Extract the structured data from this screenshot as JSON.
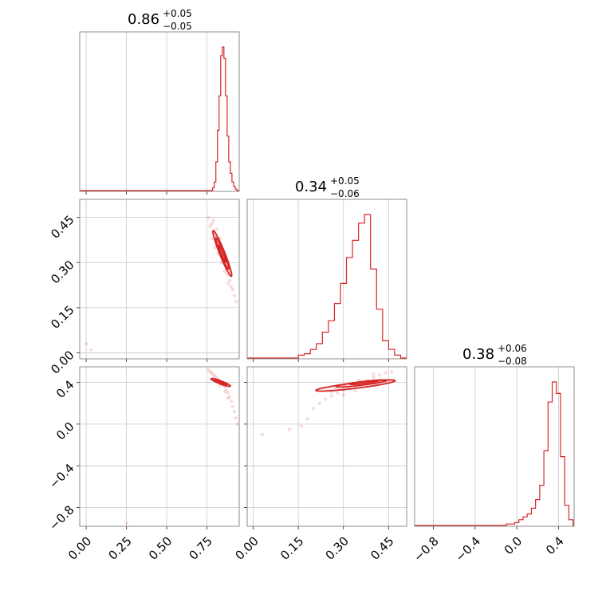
{
  "chart_data": {
    "type": "corner",
    "color": "#d62728",
    "params": [
      {
        "title": {
          "median": "0.86",
          "plus": "+0.05",
          "minus": "−0.05"
        },
        "range": [
          -0.04,
          0.95
        ],
        "ticks": [
          {
            "v": 0.0,
            "label": "0.00"
          },
          {
            "v": 0.25,
            "label": "0.25"
          },
          {
            "v": 0.5,
            "label": "0.50"
          },
          {
            "v": 0.75,
            "label": "0.75"
          }
        ]
      },
      {
        "title": {
          "median": "0.34",
          "plus": "+0.05",
          "minus": "−0.06"
        },
        "range": [
          -0.02,
          0.51
        ],
        "ticks": [
          {
            "v": 0.0,
            "label": "0.00"
          },
          {
            "v": 0.15,
            "label": "0.15"
          },
          {
            "v": 0.3,
            "label": "0.30"
          },
          {
            "v": 0.45,
            "label": "0.45"
          }
        ]
      },
      {
        "title": {
          "median": "0.38",
          "plus": "+0.06",
          "minus": "−0.08"
        },
        "range": [
          -0.98,
          0.55
        ],
        "ticks": [
          {
            "v": -0.8,
            "label": "−0.8"
          },
          {
            "v": -0.4,
            "label": "−0.4"
          },
          {
            "v": 0.0,
            "label": "0.0"
          },
          {
            "v": 0.4,
            "label": "0.4"
          }
        ]
      }
    ],
    "histograms": [
      {
        "bins": [
          0.79,
          0.8,
          0.81,
          0.82,
          0.83,
          0.84,
          0.85,
          0.86,
          0.87,
          0.88,
          0.89,
          0.9,
          0.91,
          0.92,
          0.93,
          0.94
        ],
        "values": [
          0.02,
          0.06,
          0.2,
          0.42,
          0.66,
          0.94,
          1.0,
          0.92,
          0.66,
          0.38,
          0.2,
          0.12,
          0.06,
          0.03,
          0.01,
          0.0
        ]
      },
      {
        "bins": [
          0.16,
          0.18,
          0.2,
          0.22,
          0.24,
          0.26,
          0.28,
          0.3,
          0.32,
          0.34,
          0.36,
          0.38,
          0.4,
          0.42,
          0.44,
          0.46,
          0.48
        ],
        "values": [
          0.02,
          0.03,
          0.06,
          0.1,
          0.18,
          0.26,
          0.38,
          0.52,
          0.7,
          0.82,
          0.94,
          1.0,
          0.62,
          0.34,
          0.12,
          0.06,
          0.02
        ]
      },
      {
        "bins": [
          -0.08,
          -0.04,
          0.0,
          0.04,
          0.08,
          0.12,
          0.16,
          0.2,
          0.24,
          0.28,
          0.32,
          0.36,
          0.4,
          0.44,
          0.48,
          0.52
        ],
        "values": [
          0.01,
          0.01,
          0.02,
          0.04,
          0.06,
          0.08,
          0.12,
          0.18,
          0.28,
          0.52,
          0.86,
          1.0,
          0.92,
          0.48,
          0.14,
          0.04
        ]
      }
    ],
    "scatter": [
      {
        "pair": [
          0,
          1
        ],
        "points": [
          [
            0.76,
            0.45
          ],
          [
            0.77,
            0.42
          ],
          [
            0.78,
            0.43
          ],
          [
            0.79,
            0.4
          ],
          [
            0.8,
            0.39
          ],
          [
            0.81,
            0.37
          ],
          [
            0.82,
            0.36
          ],
          [
            0.83,
            0.35
          ],
          [
            0.84,
            0.33
          ],
          [
            0.85,
            0.32
          ],
          [
            0.86,
            0.3
          ],
          [
            0.87,
            0.28
          ],
          [
            0.88,
            0.26
          ],
          [
            0.89,
            0.24
          ],
          [
            0.9,
            0.22
          ],
          [
            0.91,
            0.21
          ],
          [
            0.79,
            0.44
          ],
          [
            0.81,
            0.41
          ],
          [
            0.83,
            0.38
          ],
          [
            0.85,
            0.34
          ],
          [
            0.87,
            0.31
          ],
          [
            0.89,
            0.27
          ],
          [
            0.92,
            0.19
          ],
          [
            0.93,
            0.17
          ],
          [
            0.78,
            0.38
          ],
          [
            0.8,
            0.35
          ],
          [
            0.82,
            0.33
          ],
          [
            0.84,
            0.3
          ],
          [
            0.86,
            0.27
          ],
          [
            0.88,
            0.23
          ],
          [
            0.0,
            0.03
          ],
          [
            0.03,
            0.01
          ]
        ]
      },
      {
        "pair": [
          0,
          2
        ],
        "points": [
          [
            0.76,
            0.52
          ],
          [
            0.77,
            0.5
          ],
          [
            0.78,
            0.49
          ],
          [
            0.79,
            0.47
          ],
          [
            0.8,
            0.46
          ],
          [
            0.81,
            0.44
          ],
          [
            0.82,
            0.43
          ],
          [
            0.83,
            0.41
          ],
          [
            0.84,
            0.4
          ],
          [
            0.85,
            0.38
          ],
          [
            0.86,
            0.36
          ],
          [
            0.87,
            0.33
          ],
          [
            0.88,
            0.3
          ],
          [
            0.89,
            0.26
          ],
          [
            0.9,
            0.22
          ],
          [
            0.91,
            0.17
          ],
          [
            0.92,
            0.12
          ],
          [
            0.93,
            0.06
          ],
          [
            0.94,
            0.0
          ],
          [
            0.8,
            0.42
          ],
          [
            0.83,
            0.37
          ],
          [
            0.86,
            0.31
          ],
          [
            0.88,
            0.25
          ],
          [
            0.25,
            -0.95
          ]
        ]
      },
      {
        "pair": [
          1,
          2
        ],
        "points": [
          [
            0.2,
            0.15
          ],
          [
            0.22,
            0.2
          ],
          [
            0.24,
            0.24
          ],
          [
            0.26,
            0.27
          ],
          [
            0.28,
            0.3
          ],
          [
            0.3,
            0.33
          ],
          [
            0.32,
            0.35
          ],
          [
            0.34,
            0.37
          ],
          [
            0.36,
            0.4
          ],
          [
            0.38,
            0.42
          ],
          [
            0.4,
            0.45
          ],
          [
            0.42,
            0.47
          ],
          [
            0.44,
            0.49
          ],
          [
            0.46,
            0.5
          ],
          [
            0.3,
            0.28
          ],
          [
            0.34,
            0.32
          ],
          [
            0.38,
            0.36
          ],
          [
            0.42,
            0.41
          ],
          [
            0.26,
            0.31
          ],
          [
            0.3,
            0.37
          ],
          [
            0.35,
            0.42
          ],
          [
            0.4,
            0.48
          ],
          [
            0.18,
            0.05
          ],
          [
            0.16,
            -0.02
          ],
          [
            0.12,
            -0.05
          ],
          [
            0.03,
            -0.1
          ]
        ]
      }
    ],
    "contours": [
      {
        "pair": [
          0,
          1
        ],
        "levels": [
          {
            "center": [
              0.845,
              0.33
            ],
            "rx": 0.095,
            "ry": 0.014,
            "angle": -0.92
          },
          {
            "center": [
              0.845,
              0.33
            ],
            "rx": 0.065,
            "ry": 0.009,
            "angle": -0.92
          },
          {
            "center": [
              0.845,
              0.33
            ],
            "rx": 0.035,
            "ry": 0.005,
            "angle": -0.92
          }
        ]
      },
      {
        "pair": [
          0,
          2
        ],
        "levels": [
          {
            "center": [
              0.835,
              0.4
            ],
            "rx": 0.07,
            "ry": 0.014,
            "angle": -0.55
          },
          {
            "center": [
              0.835,
              0.4
            ],
            "rx": 0.045,
            "ry": 0.009,
            "angle": -0.55
          },
          {
            "center": [
              0.835,
              0.4
            ],
            "rx": 0.022,
            "ry": 0.005,
            "angle": -0.55
          }
        ]
      },
      {
        "pair": [
          1,
          2
        ],
        "levels": [
          {
            "center": [
              0.34,
              0.37
            ],
            "rx": 0.14,
            "ry": 0.025,
            "angle": 0.35
          },
          {
            "center": [
              0.36,
              0.39
            ],
            "rx": 0.09,
            "ry": 0.016,
            "angle": 0.35
          },
          {
            "center": [
              0.37,
              0.4
            ],
            "rx": 0.05,
            "ry": 0.009,
            "angle": 0.35
          }
        ]
      }
    ]
  }
}
